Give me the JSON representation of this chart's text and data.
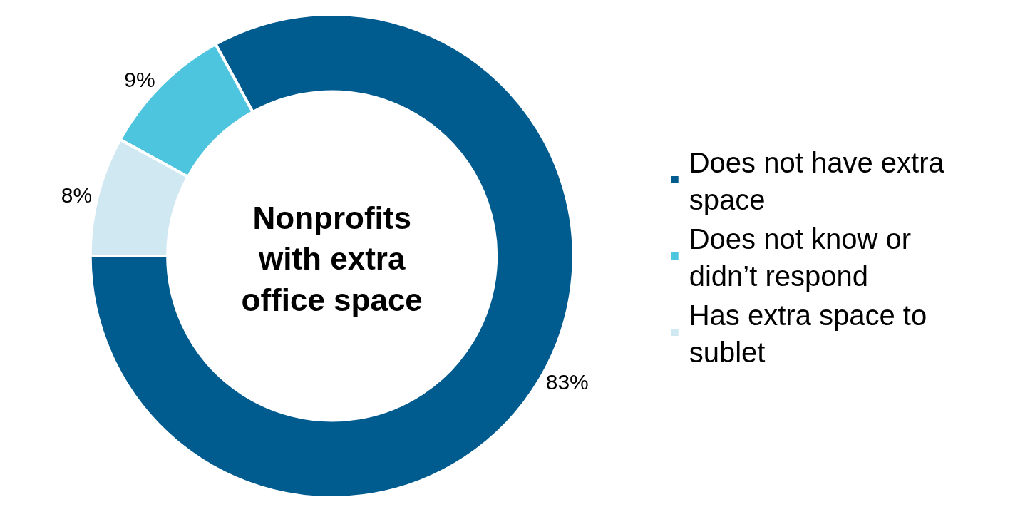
{
  "chart_data": {
    "type": "donut",
    "title": "Nonprofits with extra office space",
    "categories": [
      "Does not have extra space",
      "Does not know or didn’t respond",
      "Has extra space to sublet"
    ],
    "values": [
      83,
      9,
      8
    ],
    "value_labels": [
      "83%",
      "9%",
      "8%"
    ],
    "colors": [
      "#005b8f",
      "#4ec5df",
      "#d0e8f2"
    ],
    "legend": "right"
  }
}
